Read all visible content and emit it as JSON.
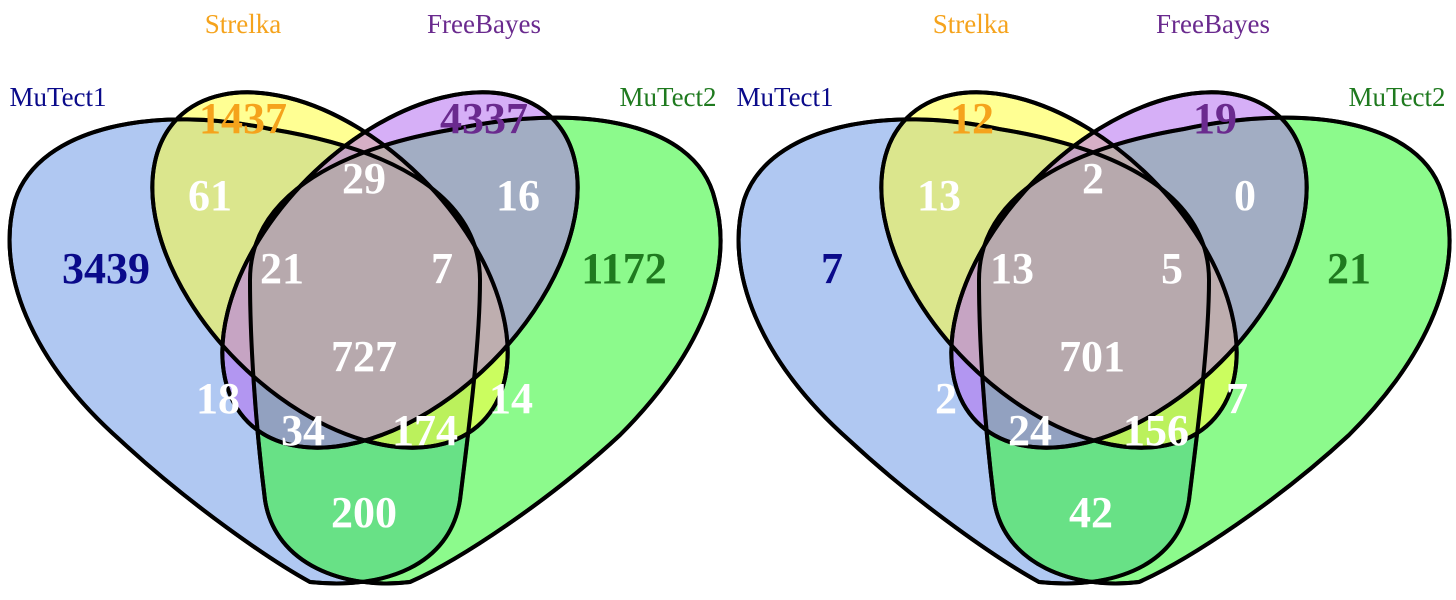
{
  "sets": [
    {
      "key": "mutect1",
      "name": "MuTect1",
      "fill": "#6f9ae8",
      "label_color": "#0a0a8a"
    },
    {
      "key": "strelka",
      "name": "Strelka",
      "fill": "#ffff3a",
      "label_color": "#f5a31c"
    },
    {
      "key": "freebayes",
      "name": "FreeBayes",
      "fill": "#b46ef0",
      "label_color": "#6a2a8e"
    },
    {
      "key": "mutect2",
      "name": "MuTect2",
      "fill": "#2ef52e",
      "label_color": "#1f7a1f"
    }
  ],
  "diagrams": [
    {
      "name": "left",
      "regions": {
        "mutect1_only": "3439",
        "strelka_only": "1437",
        "freebayes_only": "4337",
        "mutect2_only": "1172",
        "mutect1_strelka": "61",
        "strelka_freebayes": "29",
        "freebayes_mutect2": "16",
        "mutect1_strelka_freebayes": "21",
        "strelka_freebayes_mutect2": "7",
        "all_four": "727",
        "mutect1_freebayes": "18",
        "strelka_mutect2": "14",
        "mutect1_freebayes_mutect2": "34",
        "mutect1_strelka_mutect2": "174",
        "mutect1_mutect2": "200"
      }
    },
    {
      "name": "right",
      "regions": {
        "mutect1_only": "7",
        "strelka_only": "12",
        "freebayes_only": "19",
        "mutect2_only": "21",
        "mutect1_strelka": "13",
        "strelka_freebayes": "2",
        "freebayes_mutect2": "0",
        "mutect1_strelka_freebayes": "13",
        "strelka_freebayes_mutect2": "5",
        "all_four": "701",
        "mutect1_freebayes": "2",
        "strelka_mutect2": "7",
        "mutect1_freebayes_mutect2": "24",
        "mutect1_strelka_mutect2": "156",
        "mutect1_mutect2": "42"
      }
    }
  ]
}
